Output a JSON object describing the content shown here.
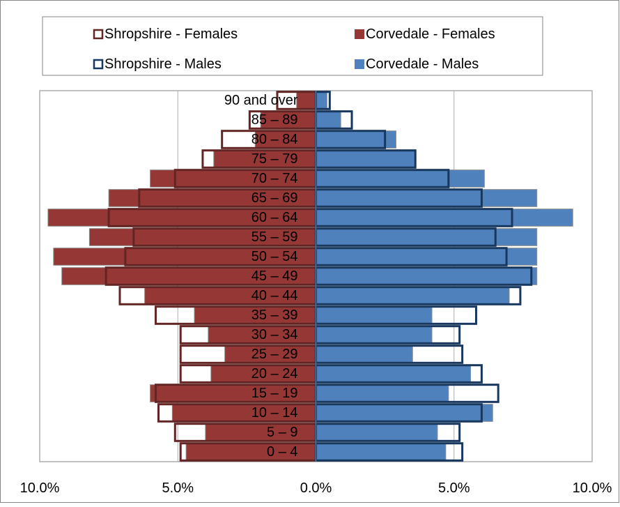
{
  "chart_data": {
    "type": "bar",
    "orientation": "horizontal",
    "title": "",
    "xlabel": "",
    "ylabel": "",
    "xlim": [
      -10,
      10
    ],
    "x_ticks": [
      -10,
      -5,
      0,
      5,
      10
    ],
    "x_tick_labels": [
      "10.0%",
      "5.0%",
      "0.0%",
      "5.0%",
      "10.0%"
    ],
    "grid": "vertical",
    "legend_position": "top",
    "categories": [
      "0 – 4",
      "5 – 9",
      "10 – 14",
      "15 – 19",
      "20 – 24",
      "25 – 29",
      "30 – 34",
      "35 – 39",
      "40 – 44",
      "45 – 49",
      "50 – 54",
      "55 – 59",
      "60 – 64",
      "65 – 69",
      "70 – 74",
      "75 – 79",
      "80 – 84",
      "85 – 89",
      "90 and over"
    ],
    "series": [
      {
        "name": "Corvedale - Females",
        "side": "left",
        "style": "filled",
        "color": "#953735",
        "values": [
          4.7,
          4.0,
          5.2,
          6.0,
          3.8,
          3.3,
          3.9,
          4.4,
          6.2,
          9.2,
          9.5,
          8.2,
          9.7,
          7.5,
          6.0,
          3.7,
          2.2,
          2.0,
          0.7
        ]
      },
      {
        "name": "Corvedale - Males",
        "side": "right",
        "style": "filled",
        "color": "#4f81bd",
        "values": [
          4.7,
          4.4,
          6.4,
          4.8,
          5.6,
          3.5,
          4.2,
          4.2,
          7.0,
          8.0,
          8.0,
          8.0,
          9.3,
          8.0,
          6.1,
          3.6,
          2.9,
          0.9,
          0.4
        ]
      },
      {
        "name": "Shropshire - Females",
        "side": "left",
        "style": "outline",
        "color": "#632523",
        "values": [
          4.9,
          5.1,
          5.7,
          5.8,
          4.9,
          4.9,
          4.9,
          5.8,
          7.1,
          7.6,
          6.9,
          6.6,
          7.5,
          6.4,
          5.1,
          4.1,
          3.4,
          2.4,
          1.4
        ]
      },
      {
        "name": "Shropshire - Males",
        "side": "right",
        "style": "outline",
        "color": "#17375e",
        "values": [
          5.3,
          5.2,
          6.0,
          6.6,
          6.0,
          5.3,
          5.2,
          5.8,
          7.4,
          7.8,
          6.9,
          6.5,
          7.1,
          6.0,
          4.8,
          3.6,
          2.5,
          1.3,
          0.5
        ]
      }
    ]
  }
}
